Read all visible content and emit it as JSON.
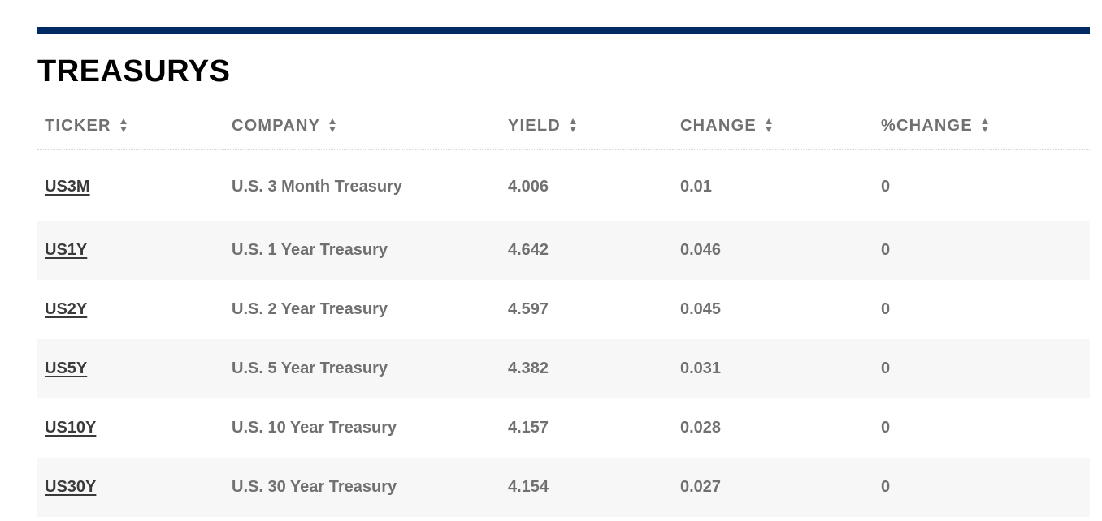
{
  "section": {
    "title": "TREASURYS"
  },
  "table": {
    "headers": {
      "ticker": "TICKER",
      "company": "COMPANY",
      "yield": "YIELD",
      "change": "CHANGE",
      "pct_change": "%CHANGE"
    },
    "rows": [
      {
        "ticker": "US3M",
        "company": "U.S. 3 Month Treasury",
        "yield": "4.006",
        "change": "0.01",
        "pct_change": "0"
      },
      {
        "ticker": "US1Y",
        "company": "U.S. 1 Year Treasury",
        "yield": "4.642",
        "change": "0.046",
        "pct_change": "0"
      },
      {
        "ticker": "US2Y",
        "company": "U.S. 2 Year Treasury",
        "yield": "4.597",
        "change": "0.045",
        "pct_change": "0"
      },
      {
        "ticker": "US5Y",
        "company": "U.S. 5 Year Treasury",
        "yield": "4.382",
        "change": "0.031",
        "pct_change": "0"
      },
      {
        "ticker": "US10Y",
        "company": "U.S. 10 Year Treasury",
        "yield": "4.157",
        "change": "0.028",
        "pct_change": "0"
      },
      {
        "ticker": "US30Y",
        "company": "U.S. 30 Year Treasury",
        "yield": "4.154",
        "change": "0.027",
        "pct_change": "0"
      }
    ]
  },
  "colors": {
    "top_rule": "#002a63",
    "header_text": "#707070",
    "ticker_link": "#3a3a3a",
    "row_stripe": "#f7f7f7"
  },
  "icons": {
    "sort": "sort-arrows-icon"
  }
}
